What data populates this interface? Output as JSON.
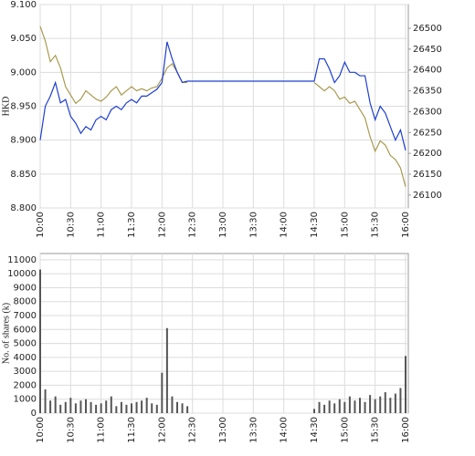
{
  "chart_data": [
    {
      "type": "line",
      "ylabel": "HKD",
      "x": [
        "10:00",
        "10:05",
        "10:10",
        "10:15",
        "10:20",
        "10:25",
        "10:30",
        "10:35",
        "10:40",
        "10:45",
        "10:50",
        "10:55",
        "11:00",
        "11:05",
        "11:10",
        "11:15",
        "11:20",
        "11:25",
        "11:30",
        "11:35",
        "11:40",
        "11:45",
        "11:50",
        "11:55",
        "12:00",
        "12:05",
        "12:10",
        "12:15",
        "12:20",
        "12:25",
        "12:30",
        "12:35",
        "12:40",
        "12:45",
        "12:50",
        "12:55",
        "13:00",
        "13:05",
        "13:10",
        "13:15",
        "13:20",
        "13:25",
        "13:30",
        "13:35",
        "13:40",
        "13:45",
        "13:50",
        "13:55",
        "14:00",
        "14:05",
        "14:10",
        "14:15",
        "14:20",
        "14:25",
        "14:30",
        "14:35",
        "14:40",
        "14:45",
        "14:50",
        "14:55",
        "15:00",
        "15:05",
        "15:10",
        "15:15",
        "15:20",
        "15:25",
        "15:30",
        "15:35",
        "15:40",
        "15:45",
        "15:50",
        "15:55",
        "16:00"
      ],
      "series": [
        {
          "color": "#a89a50",
          "axis": "y2",
          "values": [
            26505,
            26470,
            26420,
            26435,
            26405,
            26360,
            26340,
            26320,
            26330,
            26350,
            26340,
            26330,
            26325,
            26335,
            26350,
            26360,
            26340,
            26350,
            26360,
            26350,
            26355,
            26350,
            26357,
            26360,
            26380,
            26405,
            26415,
            26395,
            26370,
            26370,
            null,
            null,
            null,
            null,
            null,
            null,
            null,
            null,
            null,
            null,
            null,
            null,
            null,
            null,
            null,
            null,
            null,
            null,
            null,
            null,
            null,
            null,
            null,
            null,
            26370,
            26360,
            26350,
            26360,
            26350,
            26330,
            26335,
            26320,
            26325,
            26305,
            26285,
            26240,
            26205,
            26230,
            26220,
            26195,
            26185,
            26165,
            26120
          ]
        },
        {
          "color": "#1f3fd0",
          "values": [
            8.9,
            8.95,
            8.965,
            8.985,
            8.955,
            8.96,
            8.935,
            8.925,
            8.91,
            8.92,
            8.915,
            8.93,
            8.935,
            8.93,
            8.945,
            8.95,
            8.945,
            8.955,
            8.96,
            8.955,
            8.965,
            8.965,
            8.97,
            8.975,
            8.985,
            9.045,
            9.02,
            9.0,
            8.985,
            8.987,
            8.987,
            8.987,
            8.987,
            8.987,
            8.987,
            8.987,
            8.987,
            8.987,
            8.987,
            8.987,
            8.987,
            8.987,
            8.987,
            8.987,
            8.987,
            8.987,
            8.987,
            8.987,
            8.987,
            8.987,
            8.987,
            8.987,
            8.987,
            8.987,
            8.987,
            9.02,
            9.02,
            9.005,
            8.985,
            8.995,
            9.015,
            9.0,
            9.0,
            8.995,
            8.995,
            8.955,
            8.93,
            8.95,
            8.94,
            8.92,
            8.9,
            8.915,
            8.885
          ]
        }
      ],
      "xlim": [
        "10:00",
        "16:00"
      ],
      "xticks": [
        "10:00",
        "10:30",
        "11:00",
        "11:30",
        "12:00",
        "12:30",
        "13:00",
        "13:30",
        "14:00",
        "14:30",
        "15:00",
        "15:30",
        "16:00"
      ],
      "ylim": [
        8.8,
        9.1
      ],
      "yticks": [
        {
          "value": 8.8,
          "label": "8.800"
        },
        {
          "value": 8.85,
          "label": "8.850"
        },
        {
          "value": 8.9,
          "label": "8.900"
        },
        {
          "value": 8.95,
          "label": "8.950"
        },
        {
          "value": 9.0,
          "label": "9.000"
        },
        {
          "value": 9.05,
          "label": "9.050"
        },
        {
          "value": 9.1,
          "label": "9.100"
        }
      ],
      "y2lim": [
        26069,
        26557
      ],
      "y2ticks": [
        26100,
        26150,
        26200,
        26250,
        26300,
        26350,
        26400,
        26450,
        26500
      ],
      "grid": true
    },
    {
      "type": "bar",
      "ylabel": "No. of shares (k)",
      "color": "#555555",
      "x": [
        "10:00",
        "10:05",
        "10:10",
        "10:15",
        "10:20",
        "10:25",
        "10:30",
        "10:35",
        "10:40",
        "10:45",
        "10:50",
        "10:55",
        "11:00",
        "11:05",
        "11:10",
        "11:15",
        "11:20",
        "11:25",
        "11:30",
        "11:35",
        "11:40",
        "11:45",
        "11:50",
        "11:55",
        "12:00",
        "12:05",
        "12:10",
        "12:15",
        "12:20",
        "12:25",
        "14:30",
        "14:35",
        "14:40",
        "14:45",
        "14:50",
        "14:55",
        "15:00",
        "15:05",
        "15:10",
        "15:15",
        "15:20",
        "15:25",
        "15:30",
        "15:35",
        "15:40",
        "15:45",
        "15:50",
        "15:55",
        "16:00"
      ],
      "values": [
        10300,
        1700,
        900,
        1200,
        600,
        800,
        1100,
        700,
        900,
        1000,
        800,
        600,
        700,
        900,
        1200,
        500,
        800,
        600,
        700,
        800,
        900,
        1100,
        700,
        600,
        2900,
        6100,
        1200,
        800,
        700,
        500,
        300,
        800,
        600,
        900,
        700,
        1000,
        800,
        1200,
        900,
        1100,
        800,
        1300,
        1000,
        1200,
        1500,
        1100,
        1400,
        1800,
        4100
      ],
      "xlim": [
        "10:00",
        "16:00"
      ],
      "xticks": [
        "10:00",
        "10:30",
        "11:00",
        "11:30",
        "12:00",
        "12:30",
        "13:00",
        "13:30",
        "14:00",
        "14:30",
        "15:00",
        "15:30",
        "16:00"
      ],
      "ylim": [
        0,
        11450
      ],
      "yticks": [
        0,
        1000,
        2000,
        3000,
        4000,
        5000,
        6000,
        7000,
        8000,
        9000,
        10000,
        11000
      ],
      "grid": true
    }
  ]
}
